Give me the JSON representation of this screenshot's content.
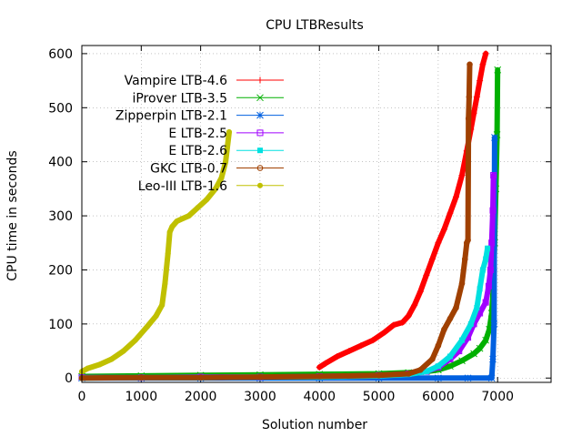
{
  "chart_data": {
    "type": "line",
    "title": "CPU LTBResults",
    "xlabel": "Solution number",
    "ylabel": "CPU time in seconds",
    "xlim": [
      0,
      7900
    ],
    "ylim": [
      -8,
      615
    ],
    "x_ticks": [
      0,
      1000,
      2000,
      3000,
      4000,
      5000,
      6000,
      7000
    ],
    "y_ticks": [
      0,
      100,
      200,
      300,
      400,
      500,
      600
    ],
    "grid": true,
    "legend_position": "top-left",
    "series": [
      {
        "name": "Vampire LTB-4.6",
        "color": "#ff0000",
        "marker": "plus",
        "x": [
          4000,
          4100,
          4300,
          4500,
          4700,
          4900,
          5100,
          5250,
          5400,
          5500,
          5600,
          5700,
          5800,
          5900,
          6000,
          6100,
          6200,
          6300,
          6400,
          6480,
          6550,
          6600,
          6650,
          6700,
          6750,
          6800
        ],
        "y": [
          20,
          27,
          40,
          50,
          60,
          70,
          85,
          98,
          103,
          115,
          135,
          160,
          190,
          220,
          250,
          275,
          305,
          335,
          375,
          420,
          460,
          490,
          520,
          550,
          580,
          600
        ]
      },
      {
        "name": "iProver LTB-3.5",
        "color": "#00b000",
        "marker": "x",
        "x": [
          0,
          1000,
          2000,
          3000,
          4000,
          5000,
          5500,
          5800,
          6000,
          6200,
          6400,
          6600,
          6700,
          6800,
          6860,
          6900,
          6930,
          6950,
          6970,
          6990,
          7000
        ],
        "y": [
          3,
          4,
          5,
          6,
          7,
          8,
          10,
          12,
          15,
          22,
          32,
          45,
          55,
          70,
          90,
          120,
          170,
          250,
          350,
          450,
          570
        ]
      },
      {
        "name": "Zipperpin LTB-2.1",
        "color": "#0060e0",
        "marker": "star",
        "x": [
          0,
          1000,
          2000,
          3000,
          4000,
          5000,
          6000,
          6500,
          6900,
          6920,
          6940,
          6950
        ],
        "y": [
          0,
          0,
          0,
          0,
          0,
          0,
          0,
          0,
          0,
          35,
          100,
          445
        ]
      },
      {
        "name": "E LTB-2.5",
        "color": "#a000ff",
        "marker": "box",
        "x": [
          0,
          1000,
          2000,
          3000,
          4000,
          5000,
          5500,
          5800,
          6000,
          6200,
          6350,
          6500,
          6600,
          6700,
          6800,
          6850,
          6880,
          6900,
          6920,
          6930
        ],
        "y": [
          1,
          1,
          2,
          2,
          3,
          5,
          8,
          12,
          20,
          35,
          50,
          75,
          100,
          120,
          140,
          170,
          200,
          250,
          310,
          375
        ]
      },
      {
        "name": "E LTB-2.6",
        "color": "#00e0e0",
        "marker": "filled-box",
        "x": [
          0,
          1000,
          2000,
          3000,
          4000,
          5000,
          5500,
          5800,
          6000,
          6200,
          6400,
          6550,
          6650,
          6700,
          6750,
          6800,
          6830
        ],
        "y": [
          0,
          1,
          1,
          2,
          2,
          4,
          7,
          12,
          22,
          40,
          70,
          100,
          130,
          165,
          200,
          220,
          240
        ]
      },
      {
        "name": "GKC LTB-0.7",
        "color": "#a04000",
        "marker": "circle",
        "x": [
          0,
          1000,
          2000,
          3000,
          4000,
          5000,
          5500,
          5700,
          5900,
          6000,
          6100,
          6200,
          6300,
          6400,
          6450,
          6480,
          6500,
          6510,
          6520,
          6530
        ],
        "y": [
          0,
          1,
          1,
          2,
          3,
          5,
          8,
          15,
          35,
          60,
          90,
          110,
          130,
          175,
          220,
          250,
          255,
          480,
          520,
          580
        ]
      },
      {
        "name": "Leo-III LTB-1.6",
        "color": "#c0c000",
        "marker": "filled-circle",
        "x": [
          0,
          100,
          300,
          500,
          700,
          900,
          1100,
          1250,
          1350,
          1400,
          1450,
          1480,
          1520,
          1600,
          1700,
          1800,
          1950,
          2100,
          2250,
          2350,
          2420,
          2480
        ],
        "y": [
          12,
          18,
          25,
          35,
          50,
          70,
          95,
          115,
          135,
          175,
          230,
          270,
          280,
          290,
          295,
          300,
          315,
          330,
          350,
          370,
          400,
          455
        ]
      }
    ]
  }
}
